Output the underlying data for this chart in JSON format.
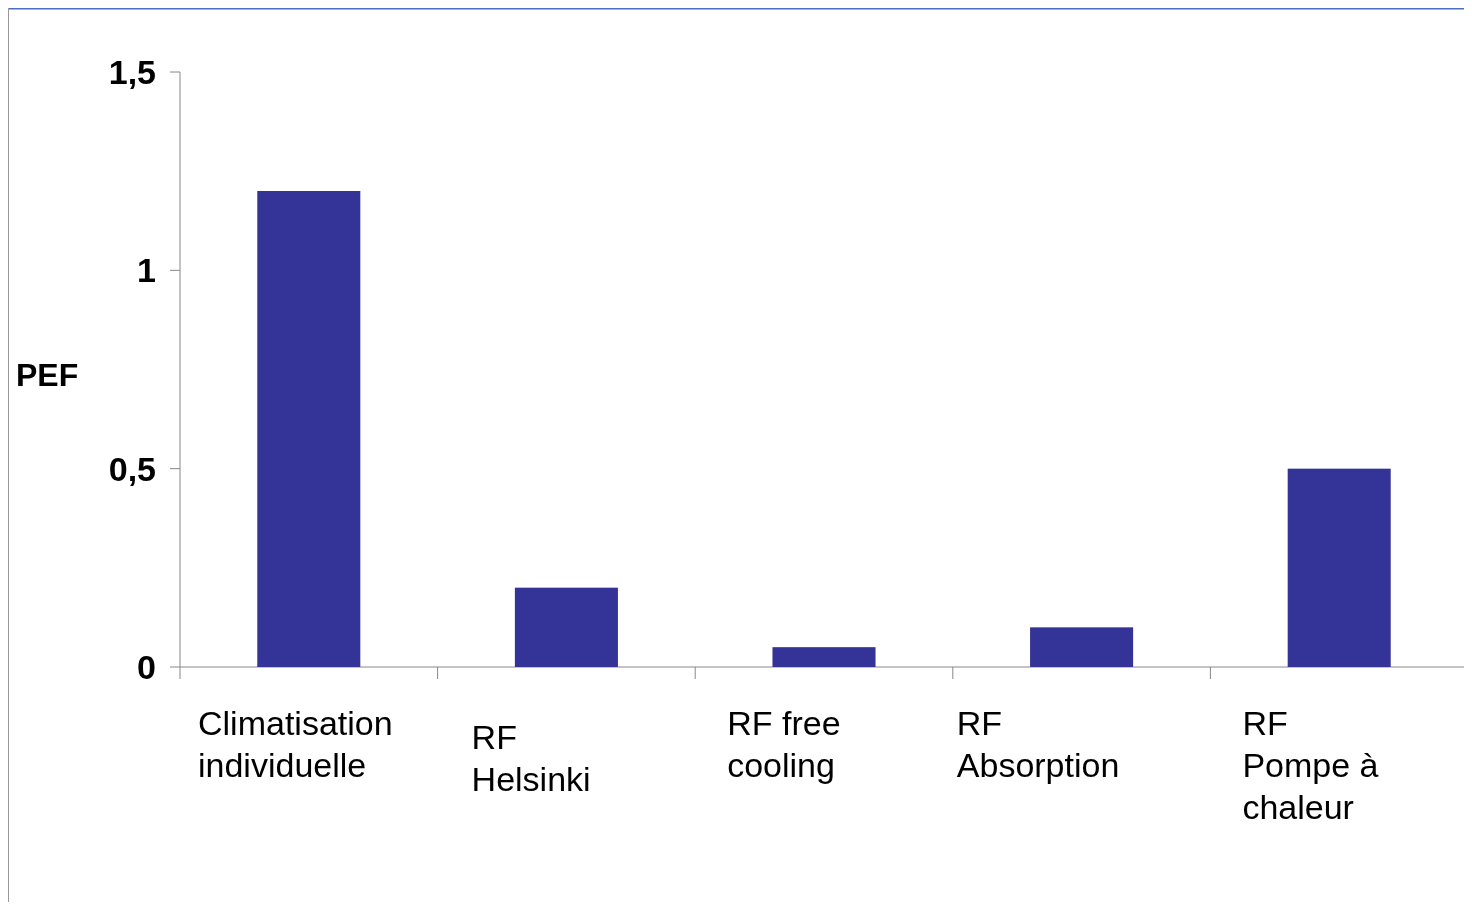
{
  "chart_data": {
    "type": "bar",
    "ylabel": "PEF",
    "categories": [
      "Climatisation\nindividuelle",
      "RF\nHelsinki",
      "RF free\ncooling",
      "RF\nAbsorption",
      "RF\nPompe à\nchaleur"
    ],
    "values": [
      1.2,
      0.2,
      0.05,
      0.1,
      0.5
    ],
    "color": "#343397",
    "ylim": [
      0,
      1.5
    ],
    "yticks": [
      0,
      {
        "value": 0.5,
        "label": "0,5"
      },
      1,
      {
        "value": 1.5,
        "label": "1,5"
      }
    ],
    "grid": false
  }
}
